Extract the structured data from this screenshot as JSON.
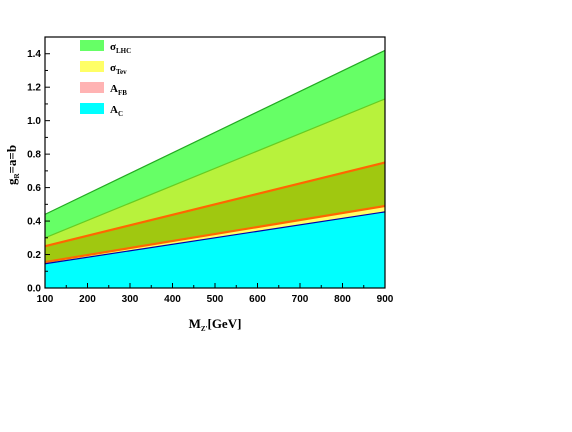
{
  "chart_data": {
    "type": "area",
    "xlabel": {
      "main": "M",
      "sub": "Z'",
      "rest": "[GeV]"
    },
    "ylabel": {
      "main": "g",
      "sub": "R",
      "rest": "=a=b"
    },
    "xlim": [
      100,
      900
    ],
    "ylim": [
      0,
      1.5
    ],
    "x_ticks": [
      100,
      200,
      300,
      400,
      500,
      600,
      700,
      800,
      900
    ],
    "x_tick_labels": [
      "100",
      "200",
      "300",
      "400",
      "500",
      "600",
      "700",
      "800",
      "900"
    ],
    "y_ticks": [
      0.0,
      0.2,
      0.4,
      0.6,
      0.8,
      1.0,
      1.2,
      1.4
    ],
    "y_tick_labels": [
      "0.0",
      "0.2",
      "0.4",
      "0.6",
      "0.8",
      "1.0",
      "1.2",
      "1.4"
    ],
    "grid": false,
    "legend_placement": "top-left",
    "x": [
      100,
      900
    ],
    "bands": [
      {
        "id": "lhc_upper",
        "lower": [
          0.3,
          1.13
        ],
        "upper": [
          0.44,
          1.42
        ],
        "fill": "#66ff66",
        "stroke": "#22aa22"
      },
      {
        "id": "lhc_tev",
        "lower": [
          0.25,
          0.75
        ],
        "upper": [
          0.3,
          1.13
        ],
        "fill": "#b8f23c",
        "stroke": "#66cc22"
      },
      {
        "id": "overlap",
        "lower": [
          0.155,
          0.49
        ],
        "upper": [
          0.25,
          0.75
        ],
        "fill": "#a0c810",
        "stroke": "#ff6600"
      },
      {
        "id": "afb",
        "lower": [
          0.145,
          0.455
        ],
        "upper": [
          0.155,
          0.49
        ],
        "fill": "#ffff66",
        "stroke": "#ff6600"
      },
      {
        "id": "ac",
        "lower": [
          0.0,
          0.0
        ],
        "upper": [
          0.145,
          0.455
        ],
        "fill": "#00ffff",
        "stroke": "#0000aa"
      }
    ],
    "series": [
      {
        "name": "σ",
        "sub": "LHC",
        "color": "#66ff66"
      },
      {
        "name": "σ",
        "sub": "Tev",
        "color": "#ffff66"
      },
      {
        "name": "A",
        "sub": "FB",
        "color": "#ffb3b3"
      },
      {
        "name": "A",
        "sub": "C",
        "color": "#00ffff"
      }
    ]
  }
}
